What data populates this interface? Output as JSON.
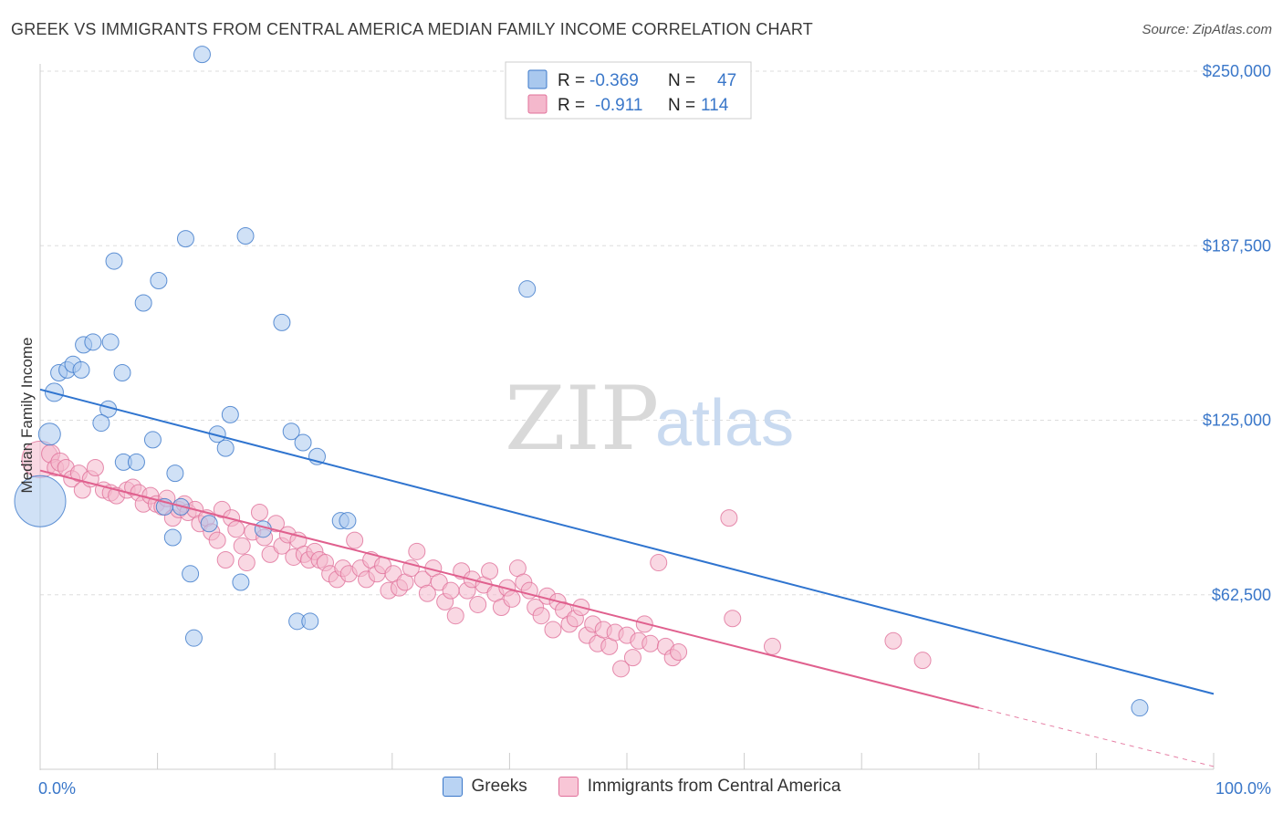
{
  "title": "GREEK VS IMMIGRANTS FROM CENTRAL AMERICA MEDIAN FAMILY INCOME CORRELATION CHART",
  "source": "Source: ZipAtlas.com",
  "watermark": {
    "zip": "ZIP",
    "atlas": "atlas"
  },
  "colors": {
    "blue": "#3a77c9",
    "blue_fill": "#a9c8ee",
    "blue_line": "#2f74cf",
    "pink": "#e0709a",
    "pink_fill": "#f4b8cc",
    "pink_line": "#e0608e",
    "grid": "#dddddd"
  },
  "stat_legend": [
    {
      "r_label": "R =",
      "r": "-0.369",
      "n_label": "N =",
      "n": "47",
      "series": "Greeks"
    },
    {
      "r_label": "R =",
      "r": "-0.911",
      "n_label": "N =",
      "n": "114",
      "series": "Immigrants from Central America"
    }
  ],
  "chart_data": {
    "type": "scatter",
    "ylabel": "Median Family Income",
    "x_tick_labels": [
      "0.0%",
      "100.0%"
    ],
    "xlim": [
      0,
      100
    ],
    "ylim": [
      0,
      255000
    ],
    "y_ticks": [
      62500,
      125000,
      187500,
      250000
    ],
    "y_tick_labels": [
      "$62,500",
      "$125,000",
      "$187,500",
      "$250,000"
    ],
    "grid": "horizontal dashed",
    "legend_position": "top-center",
    "series": [
      {
        "name": "Greeks",
        "trend": {
          "x": [
            0,
            100
          ],
          "y": [
            136000,
            27000
          ]
        },
        "points": [
          [
            0,
            96000,
            28
          ],
          [
            0.8,
            120000,
            12
          ],
          [
            1.2,
            135000,
            10
          ],
          [
            1.6,
            142000,
            9
          ],
          [
            2.3,
            143000,
            9
          ],
          [
            2.8,
            145000,
            9
          ],
          [
            3.5,
            143000,
            9
          ],
          [
            3.7,
            152000,
            9
          ],
          [
            4.5,
            153000,
            9
          ],
          [
            5.8,
            129000,
            9
          ],
          [
            6.0,
            153000,
            9
          ],
          [
            5.2,
            124000,
            9
          ],
          [
            7.0,
            142000,
            9
          ],
          [
            6.3,
            182000,
            9
          ],
          [
            7.1,
            110000,
            9
          ],
          [
            8.2,
            110000,
            9
          ],
          [
            8.8,
            167000,
            9
          ],
          [
            9.6,
            118000,
            9
          ],
          [
            10.1,
            175000,
            9
          ],
          [
            10.6,
            94000,
            9
          ],
          [
            11.3,
            83000,
            9
          ],
          [
            11.5,
            106000,
            9
          ],
          [
            12.0,
            94000,
            9
          ],
          [
            12.4,
            190000,
            9
          ],
          [
            12.8,
            70000,
            9
          ],
          [
            13.1,
            47000,
            9
          ],
          [
            13.8,
            256000,
            9
          ],
          [
            14.4,
            88000,
            9
          ],
          [
            15.1,
            120000,
            9
          ],
          [
            15.8,
            115000,
            9
          ],
          [
            16.2,
            127000,
            9
          ],
          [
            17.1,
            67000,
            9
          ],
          [
            17.5,
            191000,
            9
          ],
          [
            19.0,
            86000,
            9
          ],
          [
            20.6,
            160000,
            9
          ],
          [
            21.4,
            121000,
            9
          ],
          [
            21.9,
            53000,
            9
          ],
          [
            22.4,
            117000,
            9
          ],
          [
            23.0,
            53000,
            9
          ],
          [
            23.6,
            112000,
            9
          ],
          [
            25.6,
            89000,
            9
          ],
          [
            26.2,
            89000,
            9
          ],
          [
            41.5,
            172000,
            9
          ],
          [
            93.7,
            22000,
            9
          ]
        ]
      },
      {
        "name": "Immigrants from Central America",
        "trend": {
          "x": [
            0,
            80
          ],
          "y": [
            107000,
            22000
          ]
        },
        "trend_dashed": {
          "x": [
            80,
            100
          ],
          "y": [
            22000,
            1000
          ]
        },
        "points": [
          [
            0,
            111000,
            20
          ],
          [
            0.9,
            113000,
            10
          ],
          [
            1.3,
            108000,
            9
          ],
          [
            1.7,
            110000,
            10
          ],
          [
            2.2,
            108000,
            9
          ],
          [
            2.7,
            104000,
            9
          ],
          [
            3.3,
            106000,
            9
          ],
          [
            3.6,
            100000,
            9
          ],
          [
            4.3,
            104000,
            9
          ],
          [
            4.7,
            108000,
            9
          ],
          [
            5.4,
            100000,
            9
          ],
          [
            6.0,
            99000,
            9
          ],
          [
            6.5,
            98000,
            9
          ],
          [
            7.4,
            100000,
            9
          ],
          [
            7.9,
            101000,
            9
          ],
          [
            8.4,
            99000,
            9
          ],
          [
            8.8,
            95000,
            9
          ],
          [
            9.4,
            98000,
            9
          ],
          [
            9.9,
            95000,
            9
          ],
          [
            10.4,
            94000,
            9
          ],
          [
            10.8,
            97000,
            9
          ],
          [
            11.3,
            90000,
            9
          ],
          [
            11.8,
            93000,
            9
          ],
          [
            12.3,
            95000,
            9
          ],
          [
            12.6,
            92000,
            9
          ],
          [
            13.2,
            93000,
            9
          ],
          [
            13.6,
            88000,
            9
          ],
          [
            14.2,
            90000,
            9
          ],
          [
            14.6,
            85000,
            9
          ],
          [
            15.1,
            82000,
            9
          ],
          [
            15.5,
            93000,
            9
          ],
          [
            15.8,
            75000,
            9
          ],
          [
            16.3,
            90000,
            9
          ],
          [
            16.7,
            86000,
            9
          ],
          [
            17.2,
            80000,
            9
          ],
          [
            17.6,
            74000,
            9
          ],
          [
            18.1,
            85000,
            9
          ],
          [
            18.7,
            92000,
            9
          ],
          [
            19.1,
            83000,
            9
          ],
          [
            19.6,
            77000,
            9
          ],
          [
            20.1,
            88000,
            9
          ],
          [
            20.6,
            80000,
            9
          ],
          [
            21.1,
            84000,
            9
          ],
          [
            21.6,
            76000,
            9
          ],
          [
            22.0,
            82000,
            9
          ],
          [
            22.5,
            77000,
            9
          ],
          [
            22.9,
            75000,
            9
          ],
          [
            23.4,
            78000,
            9
          ],
          [
            23.8,
            75000,
            9
          ],
          [
            24.3,
            74000,
            9
          ],
          [
            24.7,
            70000,
            9
          ],
          [
            25.3,
            68000,
            9
          ],
          [
            25.8,
            72000,
            9
          ],
          [
            26.3,
            70000,
            9
          ],
          [
            26.8,
            82000,
            9
          ],
          [
            27.3,
            72000,
            9
          ],
          [
            27.8,
            68000,
            9
          ],
          [
            28.2,
            75000,
            9
          ],
          [
            28.7,
            70000,
            9
          ],
          [
            29.2,
            73000,
            9
          ],
          [
            29.7,
            64000,
            9
          ],
          [
            30.1,
            70000,
            9
          ],
          [
            30.6,
            65000,
            9
          ],
          [
            31.1,
            67000,
            9
          ],
          [
            31.6,
            72000,
            9
          ],
          [
            32.1,
            78000,
            9
          ],
          [
            32.6,
            68000,
            9
          ],
          [
            33.0,
            63000,
            9
          ],
          [
            33.5,
            72000,
            9
          ],
          [
            34.0,
            67000,
            9
          ],
          [
            34.5,
            60000,
            9
          ],
          [
            35.0,
            64000,
            9
          ],
          [
            35.4,
            55000,
            9
          ],
          [
            35.9,
            71000,
            9
          ],
          [
            36.4,
            64000,
            9
          ],
          [
            36.8,
            68000,
            9
          ],
          [
            37.3,
            59000,
            9
          ],
          [
            37.8,
            66000,
            9
          ],
          [
            38.3,
            71000,
            9
          ],
          [
            38.8,
            63000,
            9
          ],
          [
            39.3,
            58000,
            9
          ],
          [
            39.8,
            65000,
            9
          ],
          [
            40.2,
            61000,
            9
          ],
          [
            40.7,
            72000,
            9
          ],
          [
            41.2,
            67000,
            9
          ],
          [
            41.7,
            64000,
            9
          ],
          [
            42.2,
            58000,
            9
          ],
          [
            42.7,
            55000,
            9
          ],
          [
            43.2,
            62000,
            9
          ],
          [
            43.7,
            50000,
            9
          ],
          [
            44.1,
            60000,
            9
          ],
          [
            44.6,
            57000,
            9
          ],
          [
            45.1,
            52000,
            9
          ],
          [
            45.6,
            54000,
            9
          ],
          [
            46.1,
            58000,
            9
          ],
          [
            46.6,
            48000,
            9
          ],
          [
            47.1,
            52000,
            9
          ],
          [
            47.5,
            45000,
            9
          ],
          [
            48.0,
            50000,
            9
          ],
          [
            48.5,
            44000,
            9
          ],
          [
            49.0,
            49000,
            9
          ],
          [
            49.5,
            36000,
            9
          ],
          [
            50.0,
            48000,
            9
          ],
          [
            50.5,
            40000,
            9
          ],
          [
            51.0,
            46000,
            9
          ],
          [
            51.5,
            52000,
            9
          ],
          [
            52.0,
            45000,
            9
          ],
          [
            52.7,
            74000,
            9
          ],
          [
            53.3,
            44000,
            9
          ],
          [
            53.9,
            40000,
            9
          ],
          [
            54.4,
            42000,
            9
          ],
          [
            58.7,
            90000,
            9
          ],
          [
            59.0,
            54000,
            9
          ],
          [
            62.4,
            44000,
            9
          ],
          [
            72.7,
            46000,
            9
          ],
          [
            75.2,
            39000,
            9
          ]
        ]
      }
    ]
  }
}
